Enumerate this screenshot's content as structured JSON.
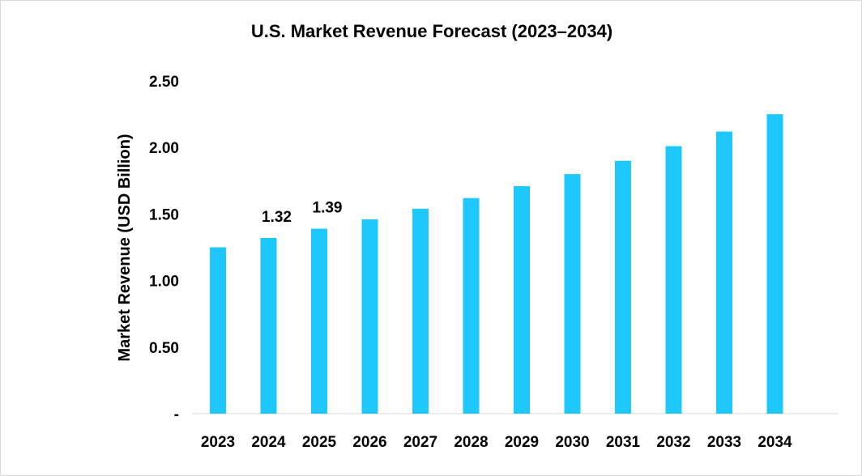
{
  "chart_data": {
    "type": "bar",
    "title": "U.S. Market Revenue Forecast (2023–2034)",
    "xlabel": "",
    "ylabel": "Market Revenue (USD Billion)",
    "categories": [
      "2023",
      "2024",
      "2025",
      "2026",
      "2027",
      "2028",
      "2029",
      "2030",
      "2031",
      "2032",
      "2033",
      "2034"
    ],
    "values": [
      1.25,
      1.32,
      1.39,
      1.46,
      1.54,
      1.62,
      1.71,
      1.8,
      1.9,
      2.01,
      2.12,
      2.25
    ],
    "data_labels": [
      {
        "index": 1,
        "text": "1.32"
      },
      {
        "index": 2,
        "text": "1.39"
      }
    ],
    "ylim": [
      0,
      2.5
    ],
    "yticks": [
      {
        "value": 0,
        "label": "-"
      },
      {
        "value": 0.5,
        "label": "0.50"
      },
      {
        "value": 1.0,
        "label": "1.00"
      },
      {
        "value": 1.5,
        "label": "1.50"
      },
      {
        "value": 2.0,
        "label": "2.00"
      },
      {
        "value": 2.5,
        "label": "2.50"
      }
    ],
    "grid": false,
    "legend": "none",
    "bar_color": "#1ec8fc"
  }
}
